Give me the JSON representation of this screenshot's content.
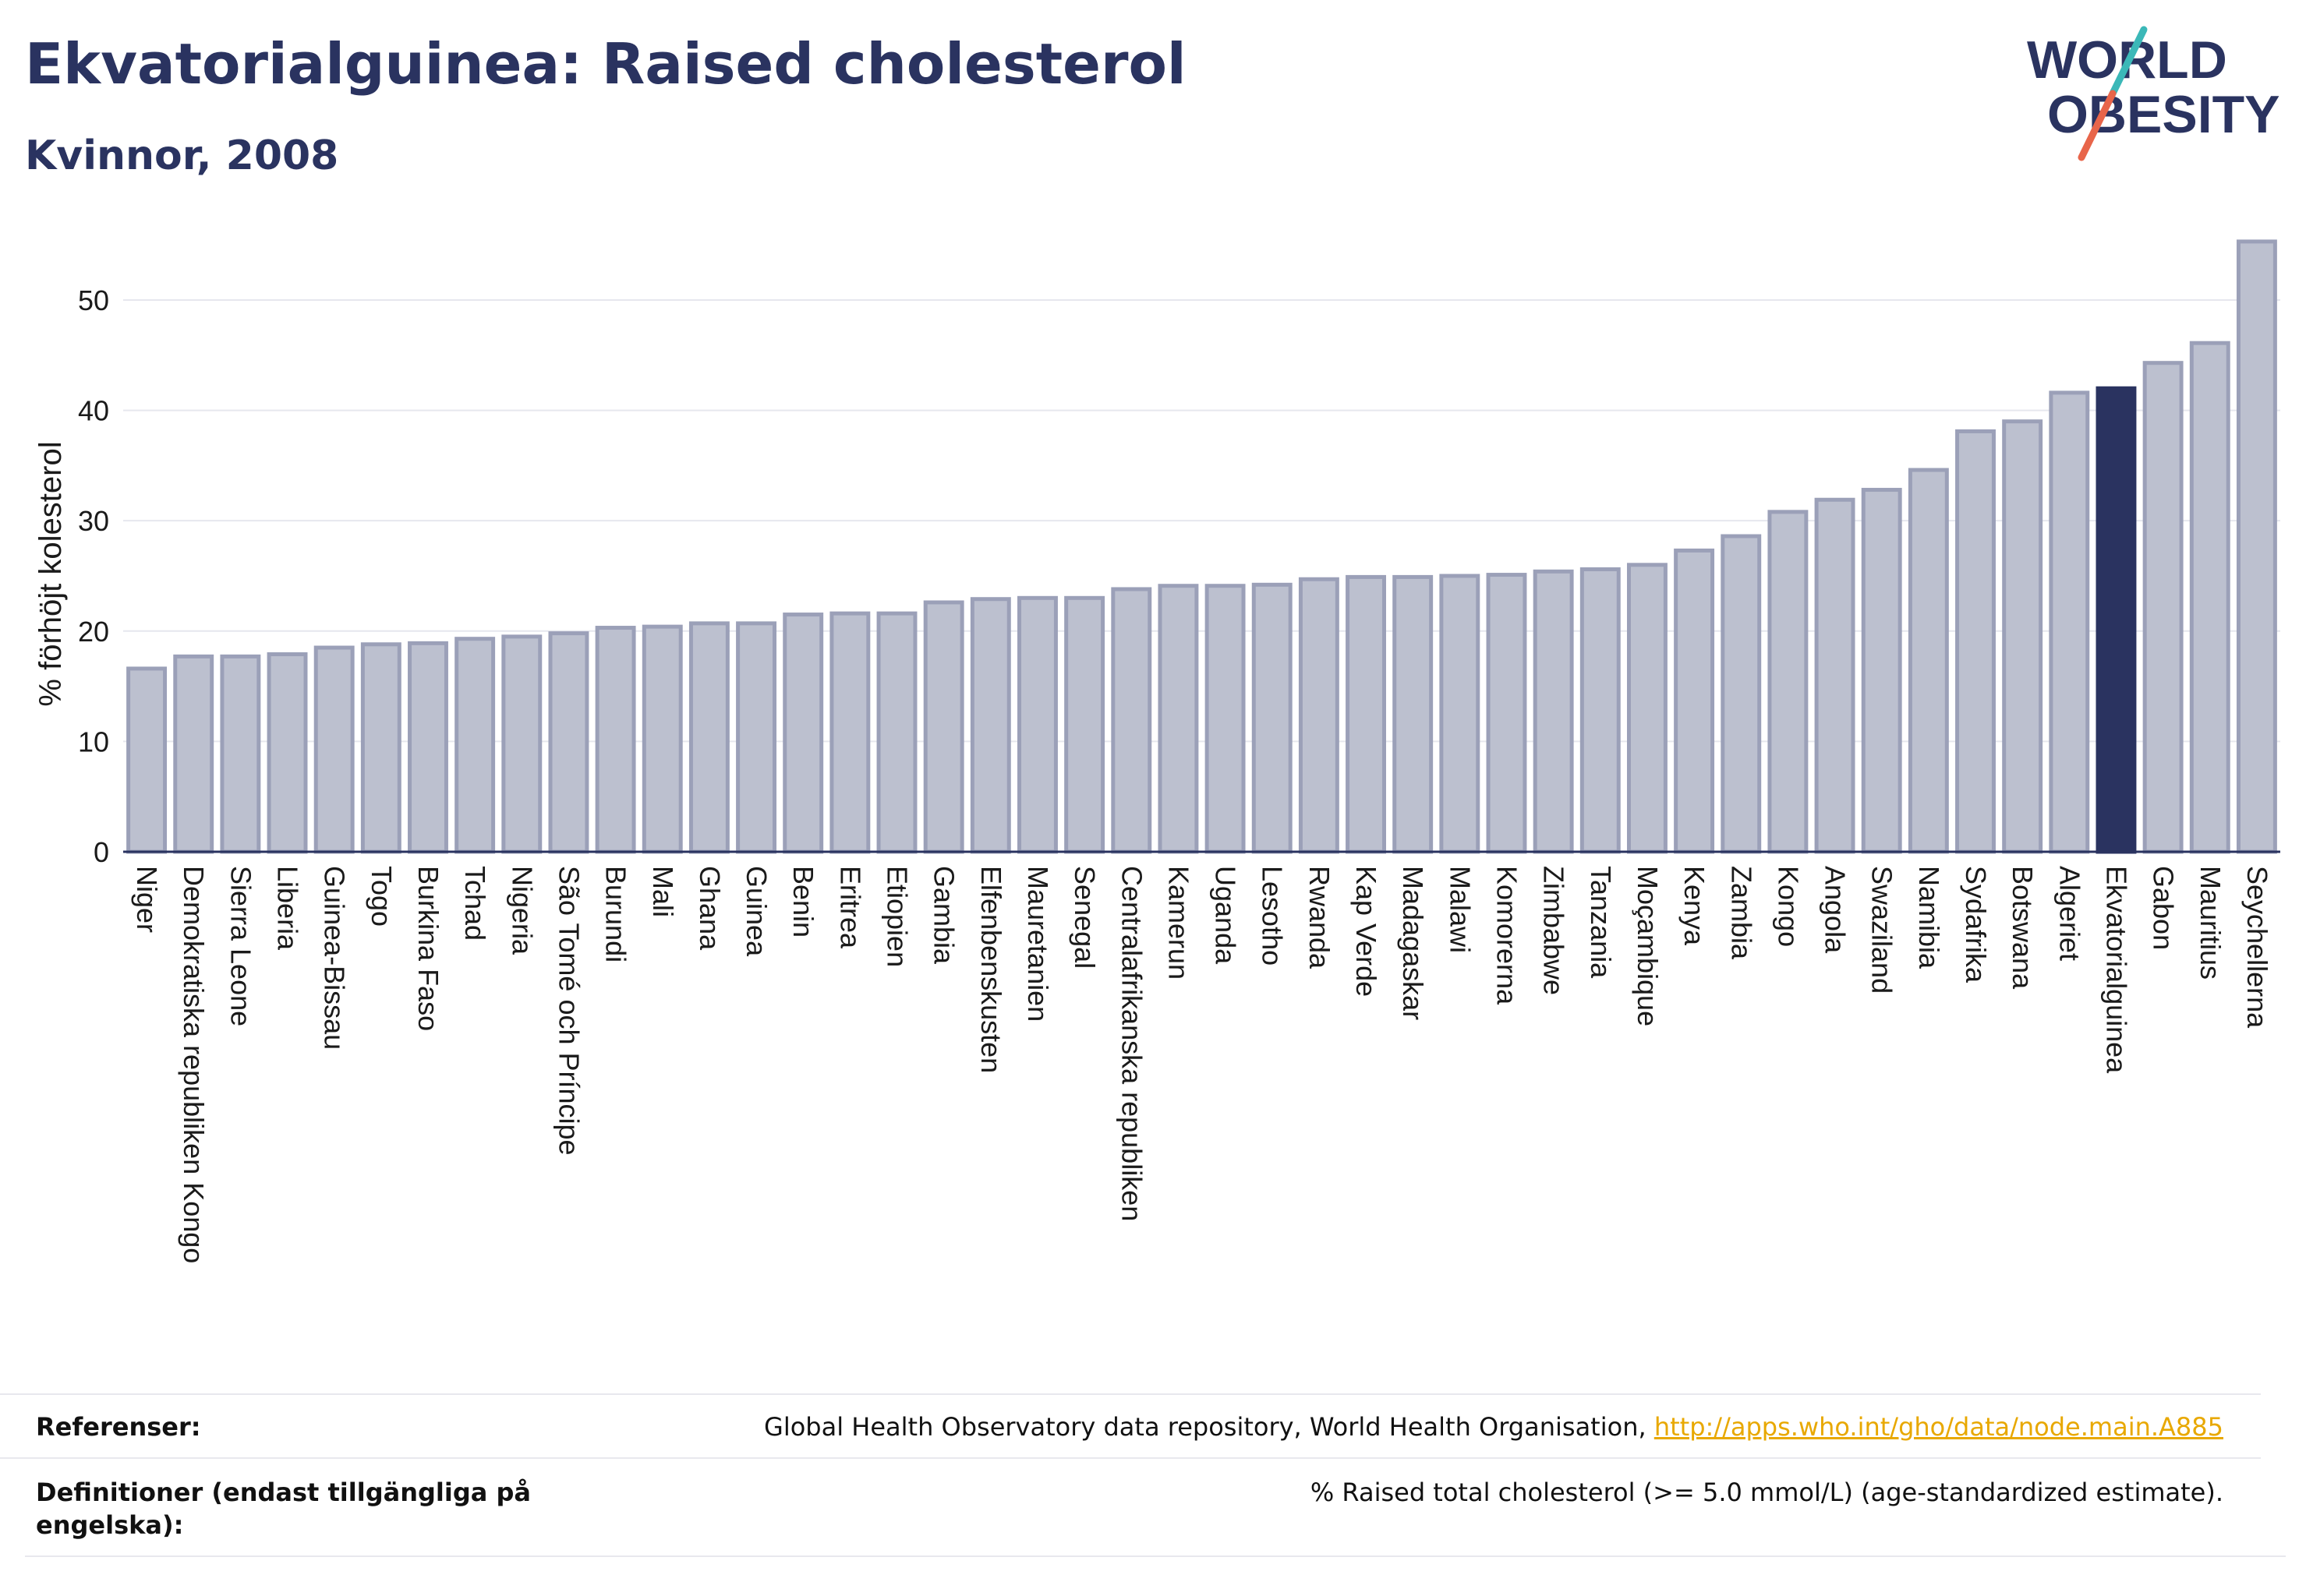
{
  "header": {
    "title": "Ekvatorialguinea: Raised cholesterol",
    "subtitle": "Kvinnor, 2008"
  },
  "logo": {
    "line1": "WORLD",
    "line2": "OBESITY"
  },
  "colors": {
    "bar": "#bcc0cf",
    "bar_border": "#9ba0b8",
    "highlight": "#2a3360",
    "text": "#2a3360",
    "link": "#e8a800",
    "logo_teal": "#3bb8b8",
    "logo_red": "#e8654a"
  },
  "chart_data": {
    "type": "bar",
    "title": "",
    "ylabel": "% förhöjt kolesterol",
    "xlabel": "",
    "ylim": [
      0,
      56
    ],
    "yticks": [
      0,
      10,
      20,
      30,
      40,
      50
    ],
    "grid": true,
    "highlight": "Ekvatorialguinea",
    "categories": [
      "Niger",
      "Demokratiska republiken Kongo",
      "Sierra Leone",
      "Liberia",
      "Guinea-Bissau",
      "Togo",
      "Burkina Faso",
      "Tchad",
      "Nigeria",
      "São Tomé och Príncipe",
      "Burundi",
      "Mali",
      "Ghana",
      "Guinea",
      "Benin",
      "Eritrea",
      "Etiopien",
      "Gambia",
      "Elfenbenskusten",
      "Mauretanien",
      "Senegal",
      "Centralafrikanska republiken",
      "Kamerun",
      "Uganda",
      "Lesotho",
      "Rwanda",
      "Kap Verde",
      "Madagaskar",
      "Malawi",
      "Komorerna",
      "Zimbabwe",
      "Tanzania",
      "Moçambique",
      "Kenya",
      "Zambia",
      "Kongo",
      "Angola",
      "Swaziland",
      "Namibia",
      "Sydafrika",
      "Botswana",
      "Algeriet",
      "Ekvatorialguinea",
      "Gabon",
      "Mauritius",
      "Seychellerna"
    ],
    "values": [
      16.6,
      17.7,
      17.7,
      17.9,
      18.5,
      18.8,
      18.9,
      19.3,
      19.5,
      19.8,
      20.3,
      20.4,
      20.7,
      20.7,
      21.5,
      21.6,
      21.6,
      22.6,
      22.9,
      23.0,
      23.0,
      23.8,
      24.1,
      24.1,
      24.2,
      24.7,
      24.9,
      24.9,
      25.0,
      25.1,
      25.4,
      25.6,
      26.0,
      27.3,
      28.6,
      30.8,
      31.9,
      32.8,
      34.6,
      38.1,
      39.0,
      41.6,
      42.0,
      44.3,
      46.1,
      55.3
    ]
  },
  "references": {
    "ref_label": "Referenser:",
    "ref_text": "Global Health Observatory data repository, World Health Organisation, ",
    "ref_link": "http://apps.who.int/gho/data/node.main.A885",
    "def_label_1": "Definitioner (endast tillgängliga på",
    "def_label_2": "engelska):",
    "def_text": "% Raised total cholesterol (>= 5.0 mmol/L) (age-standardized estimate)."
  }
}
